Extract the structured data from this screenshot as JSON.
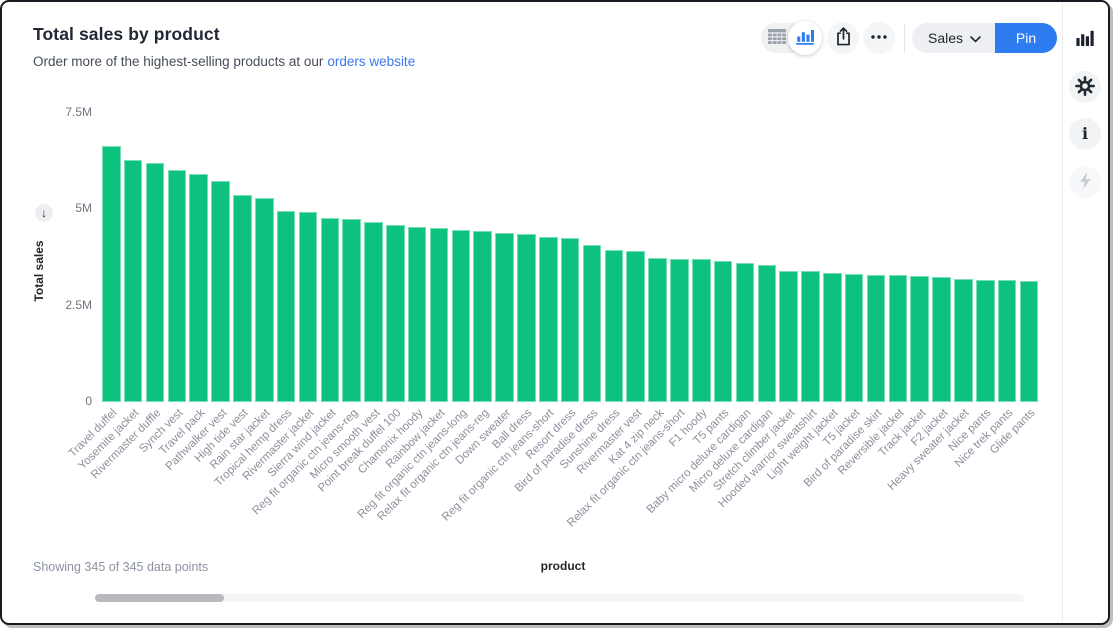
{
  "header": {
    "title": "Total sales by product",
    "subtitle_prefix": "Order more of the highest-selling products at our",
    "subtitle_link": "orders website"
  },
  "toolbar": {
    "viz_toggle": {
      "options": [
        "table",
        "chart"
      ],
      "selected": "chart"
    },
    "share_icon": "share-export-icon",
    "more_icon": "ellipsis-icon",
    "collection_label": "Sales",
    "pin_label": "Pin"
  },
  "sidebar": {
    "items": [
      {
        "name": "visualization",
        "icon": "bar-chart-icon",
        "disabled": false
      },
      {
        "name": "settings",
        "icon": "gear-icon",
        "disabled": false
      },
      {
        "name": "info",
        "icon": "info-icon",
        "disabled": false
      },
      {
        "name": "actions",
        "icon": "lightning-icon",
        "disabled": true
      }
    ],
    "info_glyph": "i"
  },
  "axis_controls": {
    "sort_arrow": "↓"
  },
  "footer": {
    "status": "Showing 345 of 345 data points"
  },
  "colors": {
    "bar": "#0cc27e",
    "accent_blue": "#2d7cf0",
    "link_blue": "#3b78f0"
  },
  "chart_data": {
    "type": "bar",
    "title": "Total sales by product",
    "xlabel": "product",
    "ylabel": "Total sales",
    "grid": false,
    "legend": "none",
    "ylim": [
      0,
      7500000
    ],
    "y_ticks_millions": [
      0,
      2.5,
      5,
      7.5
    ],
    "y_tick_labels": [
      "0",
      "2.5M",
      "5M",
      "7.5M"
    ],
    "visible_points": 43,
    "total_points": 345,
    "categories": [
      "Travel duffel",
      "Yosemite jacket",
      "Rivermaster duffle",
      "Synch vest",
      "Travel pack",
      "Pathwalker vest",
      "High tide vest",
      "Rain star jacket",
      "Tropical hemp dress",
      "Rivermaster jacket",
      "Sierra wind jacket",
      "Reg fit organic ctn jeans-reg",
      "Micro smooth vest",
      "Point break duffel 100",
      "Chamonix hoody",
      "Rainbow jacket",
      "Reg fit organic ctn jeans-long",
      "Relax fit organic ctn jeans-reg",
      "Down sweater",
      "Ball dress",
      "Reg fit organic ctn jeans-short",
      "Resort dress",
      "Bird of paradise dress",
      "Sunshine dress",
      "Rivermaster vest",
      "Kat 4 zip neck",
      "Relax fit organic ctn jeans-short",
      "F1 hoody",
      "T5 pants",
      "Baby micro deluxe cardigan",
      "Micro deluxe cardigan",
      "Stretch climber jacket",
      "Hooded warrior sweatshirt",
      "Light weight jacket",
      "T5 jacket",
      "Bird of paradise skirt",
      "Reversible jacket",
      "Track jacket",
      "F2 jacket",
      "Heavy sweater jacket",
      "Nice pants",
      "Nice trek pants",
      "Glide pants"
    ],
    "values_millions": [
      6.65,
      6.27,
      6.2,
      6.03,
      5.93,
      5.73,
      5.38,
      5.3,
      4.96,
      4.92,
      4.78,
      4.75,
      4.66,
      4.59,
      4.55,
      4.51,
      4.47,
      4.43,
      4.39,
      4.35,
      4.29,
      4.25,
      4.08,
      3.95,
      3.92,
      3.74,
      3.72,
      3.7,
      3.65,
      3.6,
      3.55,
      3.41,
      3.39,
      3.35,
      3.32,
      3.3,
      3.29,
      3.28,
      3.24,
      3.2,
      3.17,
      3.16,
      3.15
    ]
  }
}
